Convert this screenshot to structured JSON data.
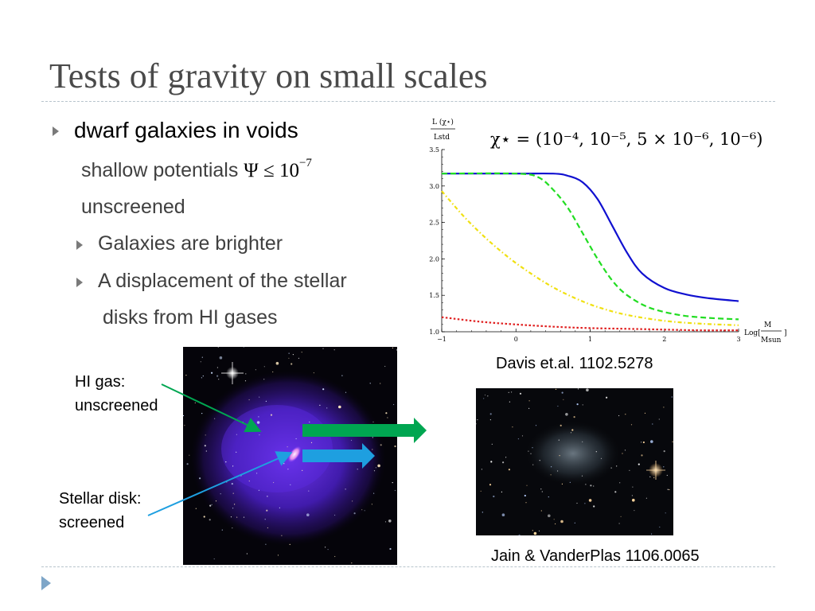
{
  "slide": {
    "title": "Tests of gravity on small scales"
  },
  "bullets": {
    "main": "dwarf galaxies in voids",
    "line1_text": "shallow potentials",
    "line1_math": "Ψ ≤ 10",
    "line1_exp": "−7",
    "line2": "unscreened",
    "sub1": "Galaxies are brighter",
    "sub2_a": "A displacement of the stellar",
    "sub2_b": "disks from HI gases"
  },
  "annotations": {
    "hi_gas_1": "HI gas:",
    "hi_gas_2": "unscreened",
    "stellar_1": "Stellar disk:",
    "stellar_2": "screened"
  },
  "captions": {
    "chart_ref": "Davis et.al. 1102.5278",
    "image_ref": "Jain & VanderPlas  1106.0065"
  },
  "colors": {
    "title": "#4a4a4a",
    "bullet_arrow": "#7a7a7a",
    "green_arrow": "#00a651",
    "blue_arrow": "#1e9fe0",
    "rule": "#b7c4cc"
  },
  "chart_data": {
    "type": "line",
    "title": "χ⋆ = (10⁻⁴, 10⁻⁵, 5 × 10⁻⁶, 10⁻⁶)",
    "ylabel_top": "L (χ⋆)",
    "ylabel_bottom": "Lstd",
    "xlabel_prefix": "Log[",
    "xlabel_num": "M",
    "xlabel_den": "Msun",
    "xlabel_suffix": "]",
    "xlim": [
      -1,
      3
    ],
    "ylim": [
      1.0,
      3.5
    ],
    "xticks": [
      "−1",
      "0",
      "1",
      "2",
      "3"
    ],
    "yticks": [
      "1.0",
      "1.5",
      "2.0",
      "2.5",
      "3.0",
      "3.5"
    ],
    "series": [
      {
        "color": "#1010d0",
        "dash": "solid",
        "x": [
          -1,
          0,
          0.5,
          0.7,
          0.9,
          1.1,
          1.3,
          1.5,
          1.7,
          2.0,
          2.3,
          2.6,
          3.0
        ],
        "y": [
          3.17,
          3.17,
          3.17,
          3.14,
          3.05,
          2.82,
          2.45,
          2.08,
          1.8,
          1.6,
          1.51,
          1.46,
          1.42
        ]
      },
      {
        "color": "#22dd22",
        "dash": "dashed",
        "x": [
          -1,
          0,
          0.3,
          0.5,
          0.7,
          0.9,
          1.1,
          1.3,
          1.5,
          1.8,
          2.2,
          2.6,
          3.0
        ],
        "y": [
          3.17,
          3.17,
          3.12,
          2.95,
          2.7,
          2.35,
          2.0,
          1.7,
          1.5,
          1.33,
          1.23,
          1.19,
          1.17
        ]
      },
      {
        "color": "#f0e010",
        "dash": "dashdot",
        "x": [
          -1,
          -0.7,
          -0.4,
          -0.1,
          0.2,
          0.5,
          0.8,
          1.1,
          1.5,
          2.0,
          2.5,
          3.0
        ],
        "y": [
          2.93,
          2.58,
          2.28,
          2.02,
          1.8,
          1.61,
          1.46,
          1.34,
          1.23,
          1.15,
          1.11,
          1.09
        ]
      },
      {
        "color": "#e02020",
        "dash": "dotted",
        "x": [
          -1,
          -0.5,
          0,
          0.5,
          1,
          1.5,
          2,
          2.5,
          3.0
        ],
        "y": [
          1.2,
          1.14,
          1.1,
          1.07,
          1.05,
          1.04,
          1.03,
          1.02,
          1.02
        ]
      }
    ]
  }
}
